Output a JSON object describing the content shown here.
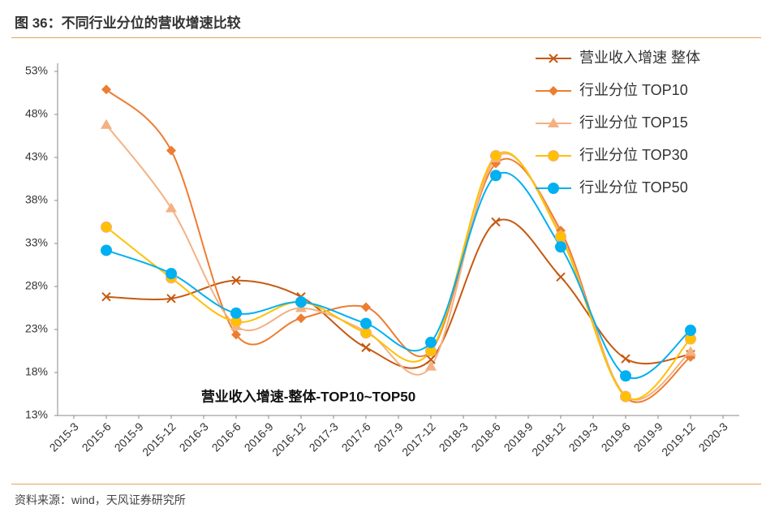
{
  "header": {
    "title": "图 36：不同行业分位的营收增速比较"
  },
  "footer": {
    "source": "资料来源：wind，天风证券研究所"
  },
  "chart_data": {
    "type": "line",
    "annotation": "营业收入增速-整体-TOP10~TOP50",
    "xticks": [
      "2015-3",
      "2015-6",
      "2015-9",
      "2015-12",
      "2016-3",
      "2016-6",
      "2016-9",
      "2016-12",
      "2017-3",
      "2017-6",
      "2017-9",
      "2017-12",
      "2018-3",
      "2018-6",
      "2018-9",
      "2018-12",
      "2019-3",
      "2019-6",
      "2019-9",
      "2019-12",
      "2020-3"
    ],
    "x": [
      "2015-6",
      "2015-12",
      "2016-6",
      "2016-12",
      "2017-6",
      "2017-12",
      "2018-6",
      "2018-12",
      "2019-6",
      "2019-12"
    ],
    "ylim": [
      13,
      53
    ],
    "yticks": [
      {
        "value": 13,
        "label": "13%"
      },
      {
        "value": 18,
        "label": "18%"
      },
      {
        "value": 23,
        "label": "23%"
      },
      {
        "value": 28,
        "label": "28%"
      },
      {
        "value": 33,
        "label": "33%"
      },
      {
        "value": 38,
        "label": "38%"
      },
      {
        "value": 43,
        "label": "43%"
      },
      {
        "value": 48,
        "label": "48%"
      },
      {
        "value": 53,
        "label": "53%"
      }
    ],
    "grid": false,
    "smooth": true,
    "legend": "top-right",
    "series": [
      {
        "name": "营业收入增速 整体",
        "color": "#c55a11",
        "marker": "x",
        "values": [
          26.8,
          26.6,
          28.7,
          26.8,
          20.9,
          19.5,
          35.5,
          29.1,
          19.6,
          20.1
        ]
      },
      {
        "name": "行业分位 TOP10",
        "color": "#ed7d31",
        "marker": "diamond",
        "values": [
          50.9,
          43.8,
          22.4,
          24.3,
          25.6,
          20.5,
          42.3,
          34.5,
          15.1,
          19.8
        ]
      },
      {
        "name": "行业分位 TOP15",
        "color": "#f4b183",
        "marker": "triangle",
        "values": [
          46.8,
          37.1,
          23.4,
          25.5,
          22.8,
          18.7,
          42.9,
          34.0,
          15.3,
          20.4
        ]
      },
      {
        "name": "行业分位 TOP30",
        "color": "#ffc000",
        "marker": "circle",
        "values": [
          34.9,
          29.0,
          23.9,
          26.2,
          22.6,
          20.5,
          43.2,
          33.8,
          15.2,
          21.9
        ]
      },
      {
        "name": "行业分位 TOP50",
        "color": "#00b0f0",
        "marker": "circle",
        "values": [
          32.2,
          29.5,
          24.9,
          26.2,
          23.7,
          21.5,
          40.9,
          32.6,
          17.6,
          22.9
        ]
      }
    ]
  }
}
